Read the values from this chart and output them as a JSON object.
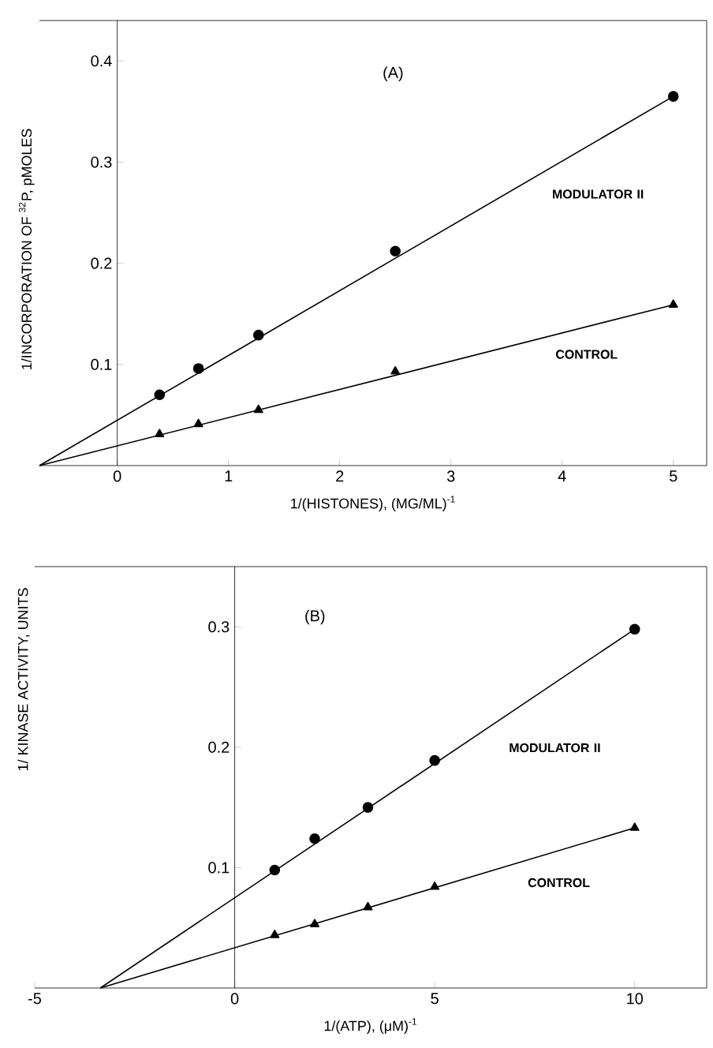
{
  "chart_data": [
    {
      "type": "scatter",
      "title": "(A)",
      "xlabel": "1/(HISTONES), (MG/ML)$^{-1}$",
      "ylabel": "1/INCORPORATION OF $^{32}$P, pMOLES",
      "xlim": [
        -0.7,
        5.3
      ],
      "ylim": [
        0,
        0.44
      ],
      "xticks": [
        0,
        1,
        2,
        3,
        4,
        5
      ],
      "yticks": [
        0.1,
        0.2,
        0.3,
        0.4
      ],
      "series": [
        {
          "marker": "circle",
          "color": "#000000",
          "x": [
            0.38,
            0.73,
            1.27,
            2.5,
            5
          ],
          "values": [
            0.07,
            0.096,
            0.129,
            0.212,
            0.365
          ]
        },
        {
          "marker": "triangle",
          "color": "#000000",
          "x": [
            0.38,
            0.73,
            1.27,
            2.5,
            5
          ],
          "values": [
            0.031,
            0.041,
            0.055,
            0.093,
            0.159
          ]
        },
        {
          "type": "line",
          "marker": "none",
          "color": "#000000",
          "x": [
            -0.7,
            5
          ],
          "values": [
            0,
            0.365
          ]
        },
        {
          "type": "line",
          "marker": "none",
          "color": "#000000",
          "x": [
            -0.7,
            5
          ],
          "values": [
            0,
            0.159
          ]
        }
      ],
      "annotations": [
        "MODULATOR II",
        "CONTROL"
      ]
    },
    {
      "type": "scatter",
      "title": "(B)",
      "xlabel": "1/(ATP), (μM)$^{-1}$",
      "ylabel": "1/ KINASE ACTIVITY, UNITS",
      "xlim": [
        -5,
        11.8
      ],
      "ylim": [
        0,
        0.35
      ],
      "xticks": [
        -5,
        0,
        5,
        10
      ],
      "yticks": [
        0.1,
        0.2,
        0.3
      ],
      "series": [
        {
          "marker": "circle",
          "color": "#000000",
          "x": [
            1,
            2,
            3.33,
            5,
            10
          ],
          "values": [
            0.098,
            0.124,
            0.15,
            0.189,
            0.298
          ]
        },
        {
          "marker": "triangle",
          "color": "#000000",
          "x": [
            1,
            2,
            3.33,
            5,
            10
          ],
          "values": [
            0.044,
            0.053,
            0.067,
            0.084,
            0.133
          ]
        },
        {
          "type": "line",
          "marker": "none",
          "color": "#000000",
          "x": [
            -3.36,
            10
          ],
          "values": [
            0,
            0.298
          ]
        },
        {
          "type": "line",
          "marker": "none",
          "color": "#000000",
          "x": [
            -3.36,
            10
          ],
          "values": [
            0,
            0.133
          ]
        }
      ],
      "annotations": [
        "MODULATOR II",
        "CONTROL"
      ]
    }
  ]
}
